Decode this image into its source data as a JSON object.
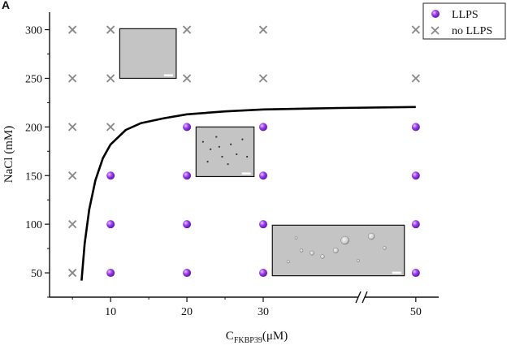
{
  "chart_data": {
    "type": "scatter",
    "panel_label": "A",
    "xlabel": "C",
    "xlabel_sub": "FKBP39",
    "xlabel_unit": "(μM)",
    "ylabel": "NaCl (mM)",
    "xlim": [
      2,
      53
    ],
    "ylim": [
      25,
      318
    ],
    "x_ticks": [
      10,
      20,
      30,
      50
    ],
    "y_ticks": [
      50,
      100,
      150,
      200,
      250,
      300
    ],
    "axis_break": "between 30 and 50",
    "legend_position": "top-right",
    "grid": false,
    "series": [
      {
        "name": "LLPS",
        "marker": "purple-sphere",
        "color": "#8a2be2",
        "points": [
          {
            "x": 10,
            "y": 50
          },
          {
            "x": 10,
            "y": 100
          },
          {
            "x": 10,
            "y": 150
          },
          {
            "x": 20,
            "y": 50
          },
          {
            "x": 20,
            "y": 100
          },
          {
            "x": 20,
            "y": 150
          },
          {
            "x": 20,
            "y": 200
          },
          {
            "x": 30,
            "y": 50
          },
          {
            "x": 30,
            "y": 100
          },
          {
            "x": 30,
            "y": 150
          },
          {
            "x": 30,
            "y": 200
          },
          {
            "x": 50,
            "y": 50
          },
          {
            "x": 50,
            "y": 100
          },
          {
            "x": 50,
            "y": 150
          },
          {
            "x": 50,
            "y": 200
          }
        ]
      },
      {
        "name": "no LLPS",
        "marker": "x",
        "color": "#888888",
        "points": [
          {
            "x": 5,
            "y": 50
          },
          {
            "x": 5,
            "y": 100
          },
          {
            "x": 5,
            "y": 150
          },
          {
            "x": 5,
            "y": 200
          },
          {
            "x": 5,
            "y": 250
          },
          {
            "x": 5,
            "y": 300
          },
          {
            "x": 10,
            "y": 200
          },
          {
            "x": 10,
            "y": 250
          },
          {
            "x": 10,
            "y": 300
          },
          {
            "x": 20,
            "y": 250
          },
          {
            "x": 20,
            "y": 300
          },
          {
            "x": 30,
            "y": 250
          },
          {
            "x": 30,
            "y": 300
          },
          {
            "x": 50,
            "y": 250
          },
          {
            "x": 50,
            "y": 300
          }
        ]
      }
    ],
    "boundary_curve": {
      "color": "#000000",
      "points": [
        {
          "x": 6.2,
          "y": 42
        },
        {
          "x": 6.6,
          "y": 80
        },
        {
          "x": 7.2,
          "y": 115
        },
        {
          "x": 8.0,
          "y": 145
        },
        {
          "x": 9.0,
          "y": 168
        },
        {
          "x": 10.0,
          "y": 182
        },
        {
          "x": 12.0,
          "y": 197
        },
        {
          "x": 14.0,
          "y": 204
        },
        {
          "x": 17.0,
          "y": 209
        },
        {
          "x": 20.0,
          "y": 213
        },
        {
          "x": 25.0,
          "y": 216
        },
        {
          "x": 30.0,
          "y": 218
        },
        {
          "x": 40.0,
          "y": 219.5
        },
        {
          "x": 50.0,
          "y": 220.5
        }
      ]
    },
    "micrographs": [
      {
        "name": "micrograph-no-llps",
        "x_range": [
          11.2,
          18.6
        ],
        "y_range": [
          250,
          301
        ],
        "droplets": "none"
      },
      {
        "name": "micrograph-small-droplets",
        "x_range": [
          21.2,
          28.8
        ],
        "y_range": [
          149,
          200
        ],
        "droplets": "small"
      },
      {
        "name": "micrograph-large-droplets",
        "x_range": [
          31.2,
          48.5
        ],
        "y_range": [
          47,
          99
        ],
        "droplets": "large"
      }
    ]
  }
}
